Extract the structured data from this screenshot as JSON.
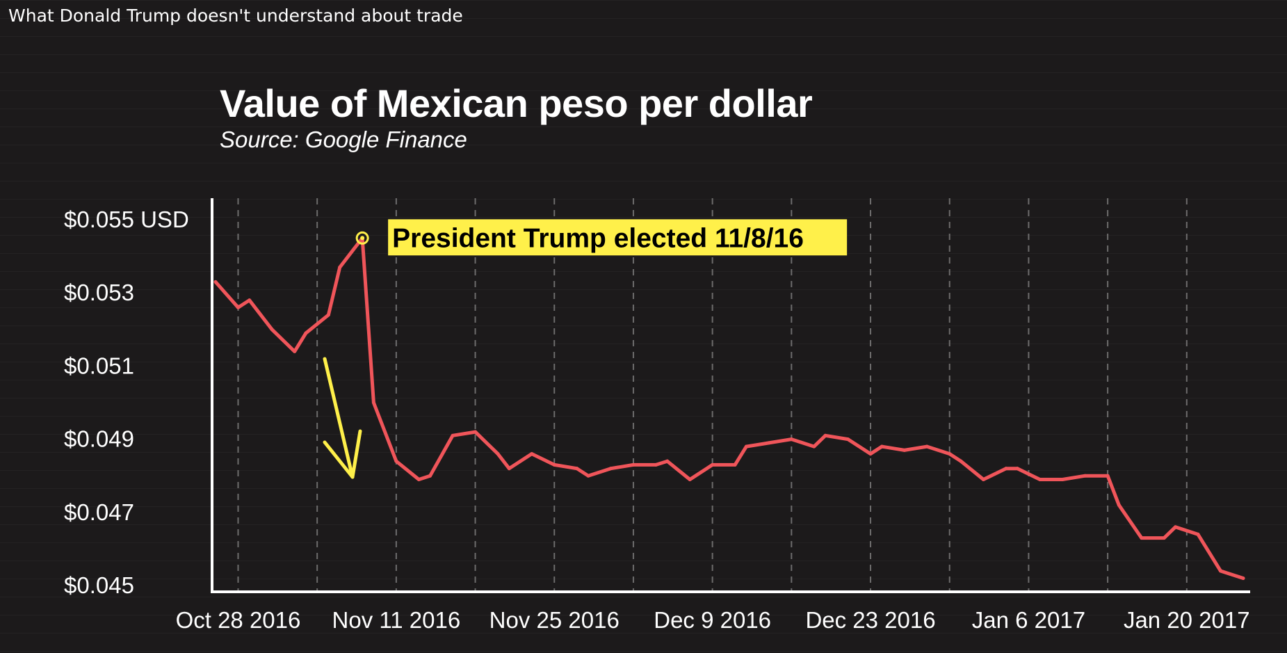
{
  "window": {
    "title": "What Donald Trump doesn't understand about trade"
  },
  "colors": {
    "line": "#f0555a",
    "annotation_bg": "#fff04a",
    "arrow": "#fff04a",
    "axis": "#ffffff",
    "gridline": "#888888"
  },
  "chart_data": {
    "type": "line",
    "title": "Value of Mexican peso per dollar",
    "subtitle": "Source: Google Finance",
    "xlabel": "",
    "ylabel": "",
    "ylim": [
      0.045,
      0.055
    ],
    "yticks": [
      0.055,
      0.053,
      0.051,
      0.049,
      0.047,
      0.045
    ],
    "ytick_labels": [
      "$0.055 USD",
      "$0.053",
      "$0.051",
      "$0.049",
      "$0.047",
      "$0.045"
    ],
    "xlim": [
      "2016-10-26",
      "2017-01-25"
    ],
    "xticks": [
      "2016-10-28",
      "2016-11-11",
      "2016-11-25",
      "2016-12-09",
      "2016-12-23",
      "2017-01-06",
      "2017-01-20"
    ],
    "xtick_labels": [
      "Oct 28 2016",
      "Nov 11 2016",
      "Nov 25 2016",
      "Dec 9 2016",
      "Dec 23 2016",
      "Jan 6 2017",
      "Jan 20 2017"
    ],
    "gridlines": "vertical dashed",
    "series": [
      {
        "points": [
          [
            "2016-10-26",
            0.0533
          ],
          [
            "2016-10-28",
            0.0526
          ],
          [
            "2016-10-29",
            0.0528
          ],
          [
            "2016-10-31",
            0.052
          ],
          [
            "2016-11-02",
            0.0514
          ],
          [
            "2016-11-03",
            0.0519
          ],
          [
            "2016-11-05",
            0.0524
          ],
          [
            "2016-11-06",
            0.0537
          ],
          [
            "2016-11-08",
            0.0545
          ],
          [
            "2016-11-09",
            0.05
          ],
          [
            "2016-11-11",
            0.0484
          ],
          [
            "2016-11-13",
            0.0479
          ],
          [
            "2016-11-14",
            0.048
          ],
          [
            "2016-11-16",
            0.0491
          ],
          [
            "2016-11-18",
            0.0492
          ],
          [
            "2016-11-20",
            0.0486
          ],
          [
            "2016-11-21",
            0.0482
          ],
          [
            "2016-11-23",
            0.0486
          ],
          [
            "2016-11-25",
            0.0483
          ],
          [
            "2016-11-27",
            0.0482
          ],
          [
            "2016-11-28",
            0.048
          ],
          [
            "2016-11-30",
            0.0482
          ],
          [
            "2016-12-02",
            0.0483
          ],
          [
            "2016-12-04",
            0.0483
          ],
          [
            "2016-12-05",
            0.0484
          ],
          [
            "2016-12-07",
            0.0479
          ],
          [
            "2016-12-09",
            0.0483
          ],
          [
            "2016-12-11",
            0.0483
          ],
          [
            "2016-12-12",
            0.0488
          ],
          [
            "2016-12-14",
            0.0489
          ],
          [
            "2016-12-16",
            0.049
          ],
          [
            "2016-12-18",
            0.0488
          ],
          [
            "2016-12-19",
            0.0491
          ],
          [
            "2016-12-21",
            0.049
          ],
          [
            "2016-12-23",
            0.0486
          ],
          [
            "2016-12-24",
            0.0488
          ],
          [
            "2016-12-26",
            0.0487
          ],
          [
            "2016-12-28",
            0.0488
          ],
          [
            "2016-12-30",
            0.0486
          ],
          [
            "2016-12-31",
            0.0484
          ],
          [
            "2017-01-02",
            0.0479
          ],
          [
            "2017-01-04",
            0.0482
          ],
          [
            "2017-01-05",
            0.0482
          ],
          [
            "2017-01-07",
            0.0479
          ],
          [
            "2017-01-09",
            0.0479
          ],
          [
            "2017-01-11",
            0.048
          ],
          [
            "2017-01-13",
            0.048
          ],
          [
            "2017-01-14",
            0.0472
          ],
          [
            "2017-01-16",
            0.0463
          ],
          [
            "2017-01-18",
            0.0463
          ],
          [
            "2017-01-19",
            0.0466
          ],
          [
            "2017-01-21",
            0.0464
          ],
          [
            "2017-01-23",
            0.0454
          ],
          [
            "2017-01-25",
            0.0452
          ]
        ]
      }
    ],
    "annotations": [
      {
        "date": "2016-11-08",
        "value": 0.0545,
        "text": "President Trump elected 11/8/16"
      }
    ]
  }
}
